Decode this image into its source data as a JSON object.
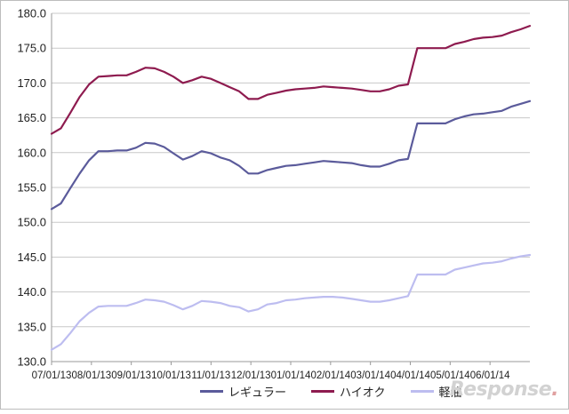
{
  "chart_data": {
    "type": "line",
    "x_labels": [
      "07/01/13",
      "08/01/13",
      "09/01/13",
      "10/01/13",
      "11/01/13",
      "12/01/13",
      "01/01/14",
      "02/01/14",
      "03/01/14",
      "04/01/14",
      "05/01/14",
      "06/01/14"
    ],
    "ylim": [
      130,
      180
    ],
    "y_ticks": [
      "130.0",
      "135.0",
      "140.0",
      "145.0",
      "150.0",
      "155.0",
      "160.0",
      "165.0",
      "170.0",
      "175.0",
      "180.0"
    ],
    "series": [
      {
        "name": "レギュラー",
        "color": "#5b5b9b",
        "values": [
          151.9,
          152.7,
          154.9,
          157.0,
          158.9,
          160.2,
          160.2,
          160.3,
          160.3,
          160.7,
          161.4,
          161.3,
          160.8,
          159.9,
          159.0,
          159.5,
          160.2,
          159.9,
          159.3,
          158.9,
          158.1,
          157.0,
          157.0,
          157.5,
          157.8,
          158.1,
          158.2,
          158.4,
          158.6,
          158.8,
          158.7,
          158.6,
          158.5,
          158.2,
          158.0,
          158.0,
          158.4,
          158.9,
          159.1,
          164.2,
          164.2,
          164.2,
          164.2,
          164.8,
          165.2,
          165.5,
          165.6,
          165.8,
          166.0,
          166.6,
          167.0,
          167.4
        ]
      },
      {
        "name": "ハイオク",
        "color": "#8e1b4f",
        "values": [
          162.7,
          163.5,
          165.7,
          168.0,
          169.8,
          170.9,
          171.0,
          171.1,
          171.1,
          171.6,
          172.2,
          172.1,
          171.6,
          170.9,
          170.0,
          170.4,
          170.9,
          170.6,
          170.0,
          169.4,
          168.8,
          167.7,
          167.7,
          168.3,
          168.6,
          168.9,
          169.1,
          169.2,
          169.3,
          169.5,
          169.4,
          169.3,
          169.2,
          169.0,
          168.8,
          168.8,
          169.1,
          169.6,
          169.8,
          175.0,
          175.0,
          175.0,
          175.0,
          175.6,
          175.9,
          176.3,
          176.5,
          176.6,
          176.8,
          177.3,
          177.7,
          178.2
        ]
      },
      {
        "name": "軽油",
        "color": "#bdbdf0",
        "values": [
          131.7,
          132.5,
          134.1,
          135.8,
          137.0,
          137.9,
          138.0,
          138.0,
          138.0,
          138.4,
          138.9,
          138.8,
          138.6,
          138.1,
          137.5,
          138.0,
          138.7,
          138.6,
          138.4,
          138.0,
          137.8,
          137.2,
          137.5,
          138.2,
          138.4,
          138.8,
          138.9,
          139.1,
          139.2,
          139.3,
          139.3,
          139.2,
          139.0,
          138.8,
          138.6,
          138.6,
          138.8,
          139.1,
          139.4,
          142.5,
          142.5,
          142.5,
          142.5,
          143.2,
          143.5,
          143.8,
          144.1,
          144.2,
          144.4,
          144.8,
          145.1,
          145.3
        ]
      }
    ]
  },
  "watermark": {
    "text": "Response",
    "dot": "."
  }
}
